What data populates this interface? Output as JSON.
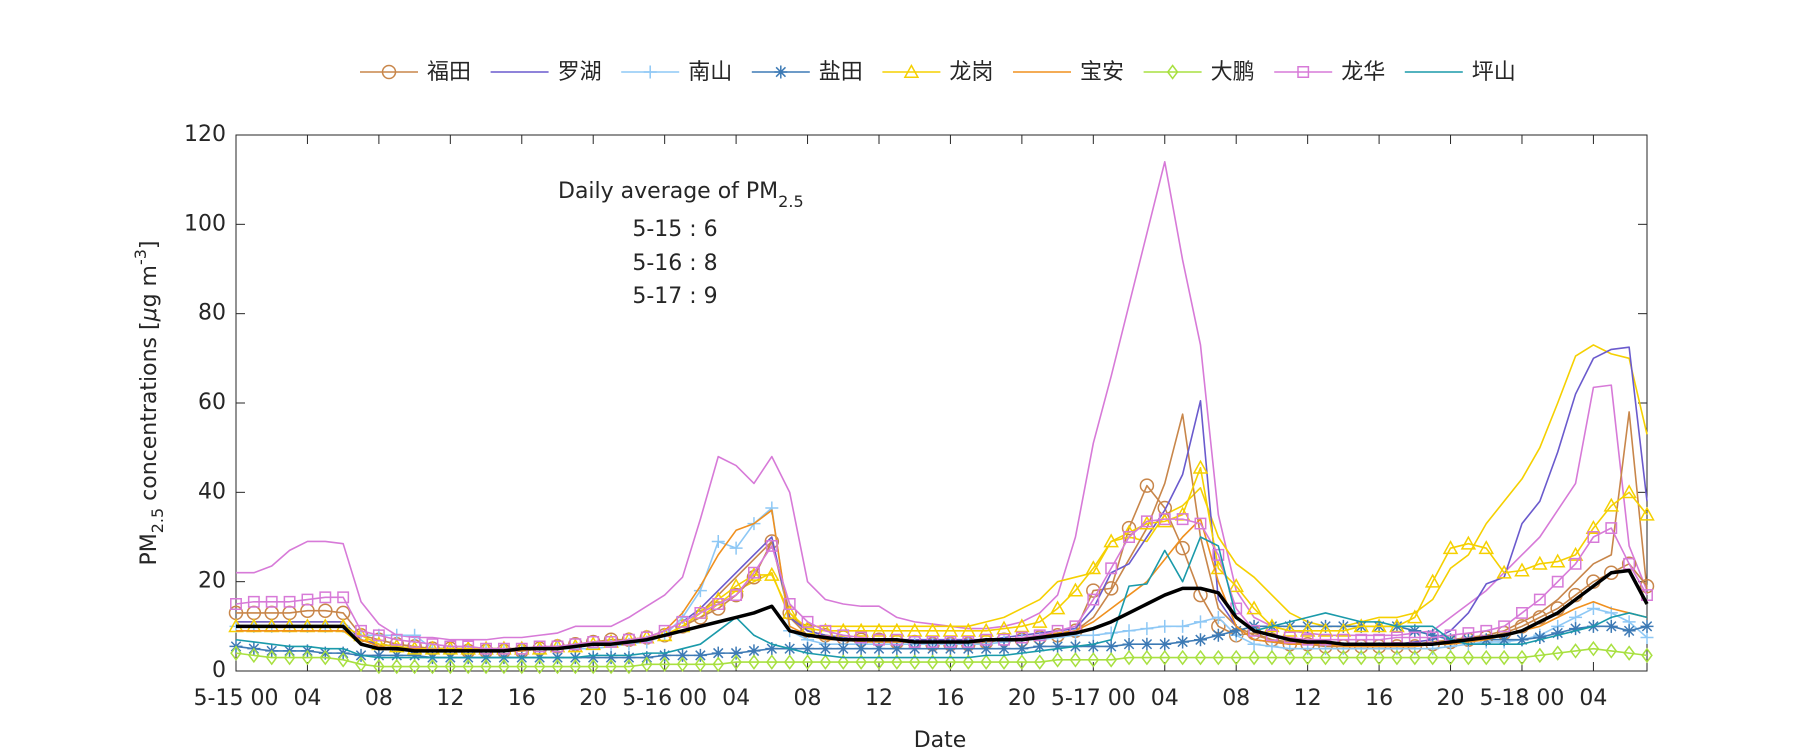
{
  "chart_data": {
    "type": "line",
    "xlabel": "Date",
    "ylabel": [
      "PM",
      "2.5",
      " concentrations [",
      "μ",
      "g m",
      "-3",
      "]"
    ],
    "annotation": {
      "title": [
        "Daily average of PM",
        "2.5"
      ],
      "lines": [
        "5-15 : 6",
        "5-16 : 8",
        "5-17 : 9"
      ]
    },
    "x": [
      0,
      1,
      2,
      3,
      4,
      5,
      6,
      7,
      8,
      9,
      10,
      11,
      12,
      13,
      14,
      15,
      16,
      17,
      18,
      19,
      20,
      21,
      22,
      23,
      24,
      25,
      26,
      27,
      28,
      29,
      30,
      31,
      32,
      33,
      34,
      35,
      36,
      37,
      38,
      39,
      40,
      41,
      42,
      43,
      44,
      45,
      46,
      47,
      48,
      49,
      50,
      51,
      52,
      53,
      54,
      55,
      56,
      57,
      58,
      59,
      60,
      61,
      62,
      63,
      64,
      65,
      66,
      67,
      68,
      69,
      70,
      71,
      72,
      73,
      74,
      75,
      76,
      77,
      78,
      79
    ],
    "xlim": [
      0,
      79
    ],
    "xticks": [
      {
        "value": 0,
        "label": "5-15 00"
      },
      {
        "value": 4,
        "label": "04"
      },
      {
        "value": 8,
        "label": "08"
      },
      {
        "value": 12,
        "label": "12"
      },
      {
        "value": 16,
        "label": "16"
      },
      {
        "value": 20,
        "label": "20"
      },
      {
        "value": 24,
        "label": "5-16 00"
      },
      {
        "value": 28,
        "label": "04"
      },
      {
        "value": 32,
        "label": "08"
      },
      {
        "value": 36,
        "label": "12"
      },
      {
        "value": 40,
        "label": "16"
      },
      {
        "value": 44,
        "label": "20"
      },
      {
        "value": 48,
        "label": "5-17 00"
      },
      {
        "value": 52,
        "label": "04"
      },
      {
        "value": 56,
        "label": "08"
      },
      {
        "value": 60,
        "label": "12"
      },
      {
        "value": 64,
        "label": "16"
      },
      {
        "value": 68,
        "label": "20"
      },
      {
        "value": 72,
        "label": "5-18 00"
      },
      {
        "value": 76,
        "label": "04"
      }
    ],
    "ylim": [
      0,
      120
    ],
    "yticks": [
      0,
      20,
      40,
      60,
      80,
      100,
      120
    ],
    "series": [
      {
        "color": "#d77ad8",
        "values": [
          22,
          22,
          23.5,
          27,
          29,
          29,
          28.5,
          15.5,
          10.5,
          8,
          7.5,
          7.5,
          7,
          7,
          7,
          7.5,
          7.5,
          8,
          8.5,
          10,
          10,
          10,
          12,
          14.5,
          17,
          21,
          34,
          48,
          46,
          42,
          48,
          40,
          20,
          16,
          15,
          14.5,
          14.5,
          12,
          11,
          10.5,
          10,
          9.5,
          9.5,
          10,
          11,
          13,
          17,
          30,
          51,
          66,
          82,
          98,
          114,
          92,
          73,
          35,
          18,
          12,
          10,
          9,
          8.5,
          8,
          8,
          8,
          8,
          8,
          8.5,
          9,
          12,
          15,
          18,
          22,
          26,
          30,
          36,
          42,
          63.5,
          64,
          28,
          18
        ]
      },
      {
        "color": "#f5d000",
        "values": [
          9,
          9,
          9,
          9,
          9,
          9,
          9,
          6,
          5,
          5,
          5,
          5,
          5,
          5,
          5,
          5,
          5,
          5,
          5.5,
          5.5,
          6,
          6.5,
          7,
          7.5,
          8,
          10,
          12,
          15,
          18,
          20,
          22,
          12,
          10,
          10,
          10,
          10,
          10,
          10,
          10,
          10,
          10,
          10,
          11,
          12,
          14,
          16,
          20,
          21,
          22,
          29,
          30,
          29,
          35,
          37,
          41,
          30,
          24,
          21,
          17,
          13,
          11,
          10,
          10,
          11,
          12,
          12,
          13,
          16,
          23,
          26,
          33,
          38,
          43,
          50,
          60,
          70.5,
          73,
          71,
          70,
          53
        ]
      },
      {
        "color": "#c8864a",
        "values": [
          11,
          11,
          11,
          11,
          11,
          11,
          11,
          7,
          6,
          5.5,
          5,
          5,
          5,
          4.5,
          4.5,
          4.5,
          4.5,
          5,
          5,
          5.5,
          6,
          6.5,
          7,
          7,
          8,
          10,
          13,
          17,
          21,
          25,
          29,
          12,
          8,
          7.5,
          7,
          7,
          6.5,
          6.5,
          6.5,
          6.5,
          6,
          6,
          6.5,
          7,
          7,
          7.5,
          8,
          9,
          12,
          18,
          25,
          32,
          42,
          57.5,
          30,
          14,
          10,
          8,
          7,
          6.5,
          6,
          6,
          6,
          6,
          6,
          6,
          6,
          6.5,
          7,
          7.5,
          8,
          9,
          11,
          13,
          16,
          20,
          24,
          26,
          58,
          18
        ]
      },
      {
        "name": "福田",
        "color": "#c8864a",
        "marker": "o",
        "values": [
          13,
          13,
          13,
          13,
          13.5,
          13.5,
          13,
          8,
          7,
          6,
          5.5,
          5,
          5,
          4.5,
          4.5,
          4.5,
          4.5,
          5,
          5.5,
          6,
          6.5,
          7,
          7,
          7.5,
          8,
          10,
          12,
          14,
          17,
          21,
          29,
          13,
          9,
          8,
          7.5,
          7,
          7,
          6.5,
          6.5,
          6,
          6,
          6,
          6.5,
          7,
          7,
          7.5,
          8,
          9,
          18,
          18.5,
          32,
          41.5,
          36.5,
          27.5,
          17,
          10,
          8,
          8.5,
          7,
          6,
          6,
          5.5,
          5.5,
          5.5,
          5.5,
          5.5,
          5.5,
          6,
          6.5,
          7,
          7.5,
          8.5,
          10,
          12,
          14,
          17,
          20,
          22,
          24,
          19
        ]
      },
      {
        "name": "罗湖",
        "color": "#6a5acd",
        "values": [
          11,
          11,
          11,
          11,
          11,
          11,
          11,
          7,
          6,
          5.5,
          5,
          5,
          5,
          5,
          5,
          5,
          5,
          5,
          5.5,
          5.5,
          6,
          6.5,
          7,
          7.5,
          9,
          11,
          14,
          18,
          22,
          26,
          30,
          12,
          9,
          8,
          7.5,
          7,
          7,
          7,
          7,
          7,
          7,
          7,
          7,
          7.5,
          8,
          8.5,
          9,
          9.5,
          14,
          22,
          24,
          30,
          36,
          44,
          60.5,
          16,
          10,
          7,
          6.5,
          6,
          6,
          6,
          6,
          6,
          6,
          6,
          6.5,
          7,
          9,
          13,
          19.5,
          21,
          33,
          38,
          49,
          62,
          70,
          72,
          72.5,
          38
        ]
      },
      {
        "name": "南山",
        "color": "#8ec8f5",
        "marker": "+",
        "values": [
          10,
          10,
          10,
          10,
          10,
          10,
          10,
          8,
          8,
          8,
          8,
          5,
          4.5,
          4.5,
          4.5,
          4.5,
          4.5,
          5,
          5,
          5,
          5,
          5.5,
          6,
          6.5,
          8,
          12,
          18,
          29,
          27.5,
          33,
          36.5,
          9,
          7,
          6,
          6,
          6,
          6,
          6,
          6,
          6,
          6,
          6,
          6,
          6.5,
          7,
          7,
          7.5,
          8,
          8,
          8.5,
          9,
          9.5,
          10,
          10,
          11,
          12,
          8,
          6,
          5.5,
          5,
          5,
          5,
          5,
          5,
          5,
          5,
          5,
          5,
          5.5,
          6,
          6.5,
          6.5,
          7,
          8,
          10,
          12,
          14,
          13,
          11,
          7.5
        ]
      },
      {
        "name": "盐田",
        "color": "#3d7ab5",
        "marker": "*",
        "values": [
          5.5,
          5,
          4.5,
          4.5,
          4.5,
          4,
          4,
          3.5,
          3.5,
          3.5,
          3.5,
          3,
          3,
          3,
          3,
          3,
          3,
          3,
          3,
          3,
          3,
          3,
          3,
          3,
          3.5,
          3.5,
          3.5,
          4,
          4,
          4.5,
          5,
          5,
          5,
          5,
          5,
          5,
          5,
          5,
          5,
          5,
          5,
          5,
          5,
          5,
          5,
          5.5,
          5.5,
          5.5,
          5.5,
          5.5,
          6,
          6,
          6,
          6.5,
          7,
          8,
          9,
          10,
          10,
          10,
          10,
          10,
          10,
          10,
          10,
          10,
          9,
          8,
          7,
          7,
          7,
          7,
          7,
          7.5,
          8.5,
          9.5,
          10,
          10,
          9,
          10
        ]
      },
      {
        "name": "龙岗",
        "color": "#f5d000",
        "marker": "^",
        "values": [
          10,
          10,
          10,
          10,
          10,
          10,
          10,
          8,
          6,
          5.5,
          5,
          5,
          5,
          5,
          5,
          5,
          5,
          5,
          5.5,
          5.5,
          6,
          6.5,
          7,
          7.5,
          8,
          10,
          13,
          16,
          19,
          21.5,
          21.5,
          13,
          9.5,
          9,
          9,
          9,
          9,
          9,
          9,
          9,
          9,
          9,
          9,
          9.5,
          10,
          11,
          14,
          18,
          23,
          29,
          31,
          33,
          33.5,
          35,
          45.5,
          23,
          19,
          14,
          10,
          9,
          9,
          9,
          9,
          10,
          10,
          10,
          12,
          20,
          27.5,
          28.5,
          27.5,
          22,
          22.5,
          24,
          24.5,
          26,
          32,
          37,
          40,
          35
        ]
      },
      {
        "name": "宝安",
        "color": "#f0901e",
        "values": [
          9,
          9,
          9,
          9,
          9,
          9,
          9,
          7,
          5.5,
          5,
          5,
          4.5,
          4.5,
          4.5,
          4.5,
          4.5,
          4.5,
          5,
          5,
          5.5,
          6,
          6.5,
          7,
          7.5,
          9,
          13,
          19,
          26,
          31.5,
          33,
          36,
          10,
          8,
          7,
          7,
          6.5,
          6.5,
          6.5,
          6.5,
          6.5,
          6.5,
          6.5,
          7,
          7,
          7.5,
          8,
          8.5,
          9,
          11,
          14,
          17,
          20,
          25,
          30,
          34,
          20,
          10,
          7,
          6.5,
          6,
          6,
          6,
          5.5,
          5.5,
          5.5,
          5.5,
          5.5,
          6,
          6,
          6.5,
          7,
          8,
          9,
          10,
          12,
          14,
          15.5,
          14,
          13,
          12
        ]
      },
      {
        "name": "大鹏",
        "color": "#a8e040",
        "marker": "d",
        "values": [
          4,
          3.5,
          3,
          3,
          3,
          3,
          2.5,
          1.5,
          1,
          1,
          1,
          1,
          1,
          1,
          1,
          1,
          1,
          1,
          1,
          1,
          1,
          1,
          1,
          1.5,
          1.5,
          1.5,
          1.5,
          1.5,
          2,
          2,
          2,
          2,
          2,
          2,
          2,
          2,
          2,
          2,
          2,
          2,
          2,
          2,
          2,
          2,
          2,
          2,
          2.5,
          2.5,
          2.5,
          2.5,
          3,
          3,
          3,
          3,
          3,
          3,
          3,
          3,
          3,
          3,
          3,
          3,
          3,
          3,
          3,
          3,
          3,
          3,
          3,
          3,
          3,
          3,
          3,
          3.5,
          4,
          4.5,
          5,
          4.5,
          4,
          3.5
        ]
      },
      {
        "name": "龙华",
        "color": "#d77ad8",
        "marker": "s",
        "values": [
          15,
          15.5,
          15.5,
          15.5,
          16,
          16.5,
          16.5,
          9,
          8,
          7,
          6.5,
          6,
          5.5,
          5.5,
          5,
          5,
          5,
          5.5,
          5.5,
          6,
          6.5,
          6.5,
          7,
          7.5,
          9,
          11,
          13,
          15,
          17,
          22,
          28,
          15,
          11,
          9,
          8,
          7.5,
          7,
          7,
          6.5,
          6.5,
          6.5,
          6.5,
          7,
          7,
          7.5,
          8,
          9,
          10,
          16,
          23,
          30,
          33.5,
          34,
          34,
          33,
          26,
          14,
          9,
          8,
          7.5,
          7,
          7,
          7,
          7,
          7,
          7.5,
          7.5,
          7.5,
          8,
          8.5,
          9,
          10,
          13,
          16,
          20,
          24,
          30,
          32,
          24,
          17
        ]
      },
      {
        "name": "坪山",
        "color": "#1a9aaa",
        "values": [
          7,
          6.5,
          6,
          5.5,
          5.5,
          5,
          5,
          3.5,
          3,
          3,
          3,
          3,
          3,
          3,
          3,
          3,
          3,
          3,
          3,
          3,
          3.5,
          3.5,
          3.5,
          4,
          4,
          5,
          6,
          9,
          12,
          8,
          6,
          5,
          4,
          3.5,
          3,
          3,
          3,
          3,
          3,
          3,
          3,
          3,
          3.5,
          3.5,
          4,
          4.5,
          5,
          5.5,
          6,
          7,
          19,
          19.5,
          27,
          20,
          30,
          28,
          12,
          9,
          10,
          11,
          12,
          13,
          12,
          11,
          11,
          10,
          10,
          10,
          7,
          6,
          6,
          6,
          6,
          7,
          8,
          9,
          10,
          12,
          13,
          12
        ]
      },
      {
        "color": "#000000",
        "values": [
          10,
          10,
          10,
          10,
          10,
          10,
          10,
          6,
          5,
          5,
          4.5,
          4.5,
          4.5,
          4.5,
          4.5,
          4.5,
          5,
          5,
          5,
          5.5,
          6,
          6,
          6.5,
          7,
          8,
          9,
          10,
          11,
          12,
          13,
          14.5,
          9,
          8,
          7.5,
          7,
          7,
          7,
          7,
          6.5,
          6.5,
          6.5,
          6.5,
          7,
          7,
          7,
          7.5,
          8,
          8.5,
          9.5,
          11,
          13,
          15,
          17,
          18.5,
          18.5,
          17.5,
          12,
          9,
          8,
          7,
          6.5,
          6.5,
          6,
          6,
          6,
          6,
          6,
          6,
          6.5,
          7,
          7.5,
          8,
          9,
          11,
          13,
          16,
          19,
          22,
          22.5,
          15
        ]
      }
    ]
  }
}
